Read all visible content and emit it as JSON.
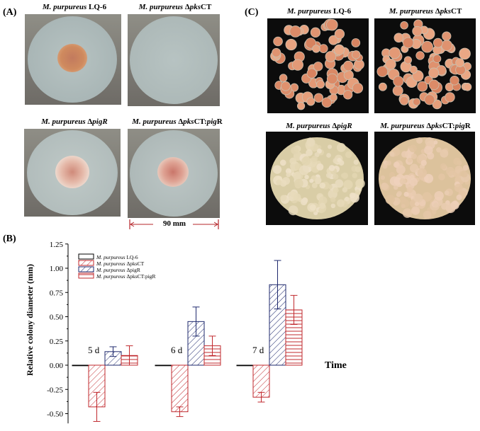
{
  "panel_a": {
    "label": "(A)",
    "captions": [
      {
        "species": "M. purpureus",
        "strain": " LQ-6"
      },
      {
        "species": "M. purpureus",
        "strain": " Δ",
        "gene": "pks",
        "suffix": "CT"
      },
      {
        "species": "M. purpureus",
        "strain": " Δ",
        "gene": "pigR",
        "suffix": ""
      },
      {
        "species": "M. purpureus",
        "strain": " Δ",
        "gene": "pks",
        "suffix": "CT:",
        "gene2": "pig",
        "suffix2": "R"
      }
    ],
    "scale_label": "90 mm"
  },
  "panel_c": {
    "label": "(C)",
    "captions": [
      {
        "species": "M. purpureus",
        "strain": " LQ-6"
      },
      {
        "species": "M. purpureus",
        "strain": " Δ",
        "gene": "pks",
        "suffix": "CT"
      },
      {
        "species": "M. purpureus",
        "strain": " Δ",
        "gene": "pigR",
        "suffix": ""
      },
      {
        "species": "M. purpureus",
        "strain": " Δ",
        "gene": "pks",
        "suffix": "CT:",
        "gene2": "pig",
        "suffix2": "R"
      }
    ]
  },
  "panel_b": {
    "label": "(B)"
  },
  "colors": {
    "black": "#000000",
    "red": "#c0282d",
    "navy": "#1f2a6e",
    "scale_red": "#b5262a"
  },
  "chart_data": {
    "type": "bar",
    "ylabel": "Relative colony diameter (mm)",
    "xlabel": "Time",
    "ylim": [
      -0.6,
      1.25
    ],
    "yticks": [
      "1.25",
      "1.00",
      "0.75",
      "0.50",
      "0.25",
      "0.00",
      "-0.25",
      "-0.50"
    ],
    "ytick_values": [
      1.25,
      1.0,
      0.75,
      0.5,
      0.25,
      0.0,
      -0.25,
      -0.5
    ],
    "categories": [
      "5 d",
      "6 d",
      "7 d"
    ],
    "legend_position": "top-left",
    "legend_labels": [
      [
        "M. purpureus",
        " LQ-6"
      ],
      [
        "M. purpureus",
        " ΔpksCT"
      ],
      [
        "M. purpureus",
        " ΔpigR"
      ],
      [
        "M. purpureus",
        " ΔpksCT:pigR"
      ]
    ],
    "series": [
      {
        "name": "M. purpureus LQ-6",
        "values": [
          0.0,
          0.0,
          0.0
        ],
        "errors": [
          0.0,
          0.0,
          0.0
        ],
        "color": "#000000",
        "pattern": "none"
      },
      {
        "name": "M. purpureus ΔpksCT",
        "values": [
          -0.43,
          -0.48,
          -0.33
        ],
        "errors": [
          0.15,
          0.05,
          0.05
        ],
        "color": "#c0282d",
        "pattern": "diag-right"
      },
      {
        "name": "M. purpureus ΔpigR",
        "values": [
          0.14,
          0.45,
          0.83
        ],
        "errors": [
          0.05,
          0.15,
          0.25
        ],
        "color": "#1f2a6e",
        "pattern": "diag-right"
      },
      {
        "name": "M. purpureus ΔpksCT:pigR",
        "values": [
          0.1,
          0.2,
          0.57
        ],
        "errors": [
          0.1,
          0.1,
          0.15
        ],
        "color": "#c0282d",
        "pattern": "horizontal"
      }
    ]
  }
}
